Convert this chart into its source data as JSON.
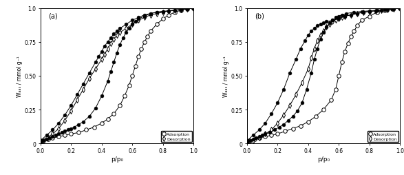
{
  "title_a": "(a)",
  "title_b": "(b)",
  "xlabel": "p/p₀",
  "ylabel": "Wₐₐₛ / mmol g⁻¹",
  "ylim": [
    0,
    1.0
  ],
  "xlim": [
    0,
    1.0
  ],
  "legend_ads": "Adsorption",
  "legend_des": "Desorption",
  "background_color": "#ffffff",
  "panel_a": {
    "ads_filled": {
      "x": [
        0.0,
        0.02,
        0.04,
        0.06,
        0.08,
        0.1,
        0.12,
        0.14,
        0.16,
        0.18,
        0.2,
        0.22,
        0.25,
        0.28,
        0.32,
        0.36,
        0.4,
        0.44,
        0.46,
        0.48,
        0.5,
        0.52,
        0.54,
        0.56,
        0.58,
        0.6,
        0.62,
        0.64,
        0.68,
        0.72,
        0.76,
        0.8,
        0.84,
        0.88,
        0.92,
        0.96,
        1.0
      ],
      "y": [
        0.01,
        0.02,
        0.03,
        0.04,
        0.05,
        0.06,
        0.07,
        0.08,
        0.09,
        0.1,
        0.11,
        0.12,
        0.14,
        0.16,
        0.2,
        0.26,
        0.35,
        0.46,
        0.53,
        0.6,
        0.67,
        0.73,
        0.78,
        0.82,
        0.85,
        0.88,
        0.9,
        0.92,
        0.94,
        0.96,
        0.97,
        0.975,
        0.98,
        0.985,
        0.99,
        0.995,
        1.0
      ]
    },
    "des_filled": {
      "x": [
        1.0,
        0.96,
        0.92,
        0.88,
        0.84,
        0.8,
        0.76,
        0.72,
        0.68,
        0.64,
        0.6,
        0.56,
        0.52,
        0.5,
        0.48,
        0.46,
        0.44,
        0.42,
        0.4,
        0.38,
        0.36,
        0.32,
        0.28,
        0.24,
        0.2,
        0.16,
        0.12,
        0.08,
        0.04,
        0.0
      ],
      "y": [
        1.0,
        0.995,
        0.99,
        0.985,
        0.98,
        0.975,
        0.97,
        0.96,
        0.95,
        0.93,
        0.91,
        0.88,
        0.85,
        0.83,
        0.81,
        0.78,
        0.75,
        0.72,
        0.68,
        0.64,
        0.6,
        0.52,
        0.44,
        0.36,
        0.28,
        0.21,
        0.15,
        0.1,
        0.06,
        0.02
      ]
    },
    "ads_open": {
      "x": [
        0.0,
        0.02,
        0.05,
        0.08,
        0.12,
        0.16,
        0.2,
        0.25,
        0.3,
        0.35,
        0.4,
        0.44,
        0.48,
        0.52,
        0.55,
        0.58,
        0.6,
        0.62,
        0.64,
        0.66,
        0.68,
        0.7,
        0.72,
        0.76,
        0.8,
        0.84,
        0.88,
        0.92,
        0.96,
        1.0
      ],
      "y": [
        0.01,
        0.02,
        0.03,
        0.04,
        0.05,
        0.06,
        0.07,
        0.08,
        0.1,
        0.12,
        0.15,
        0.18,
        0.22,
        0.28,
        0.35,
        0.43,
        0.5,
        0.57,
        0.64,
        0.7,
        0.75,
        0.79,
        0.83,
        0.88,
        0.92,
        0.95,
        0.97,
        0.985,
        0.995,
        1.0
      ]
    },
    "des_open": {
      "x": [
        1.0,
        0.96,
        0.92,
        0.88,
        0.84,
        0.8,
        0.76,
        0.72,
        0.68,
        0.64,
        0.6,
        0.56,
        0.52,
        0.5,
        0.48,
        0.46,
        0.44,
        0.42,
        0.4,
        0.36,
        0.32,
        0.28,
        0.24,
        0.2,
        0.16,
        0.12,
        0.08,
        0.04,
        0.0
      ],
      "y": [
        1.0,
        0.995,
        0.99,
        0.985,
        0.98,
        0.97,
        0.96,
        0.95,
        0.93,
        0.91,
        0.88,
        0.85,
        0.82,
        0.8,
        0.77,
        0.74,
        0.7,
        0.66,
        0.62,
        0.55,
        0.48,
        0.4,
        0.32,
        0.24,
        0.17,
        0.11,
        0.07,
        0.04,
        0.02
      ]
    }
  },
  "panel_b": {
    "ads_filled": {
      "x": [
        0.0,
        0.02,
        0.04,
        0.06,
        0.08,
        0.1,
        0.12,
        0.15,
        0.18,
        0.21,
        0.24,
        0.27,
        0.3,
        0.33,
        0.36,
        0.39,
        0.42,
        0.44,
        0.46,
        0.48,
        0.5,
        0.52,
        0.54,
        0.56,
        0.58,
        0.6,
        0.62,
        0.65,
        0.7,
        0.75,
        0.8,
        0.85,
        0.9,
        0.95,
        1.0
      ],
      "y": [
        0.01,
        0.02,
        0.03,
        0.04,
        0.05,
        0.06,
        0.07,
        0.08,
        0.1,
        0.12,
        0.14,
        0.17,
        0.2,
        0.24,
        0.3,
        0.4,
        0.52,
        0.62,
        0.7,
        0.77,
        0.82,
        0.86,
        0.89,
        0.91,
        0.93,
        0.94,
        0.95,
        0.96,
        0.97,
        0.975,
        0.98,
        0.985,
        0.99,
        0.995,
        1.0
      ]
    },
    "des_filled": {
      "x": [
        1.0,
        0.96,
        0.92,
        0.88,
        0.84,
        0.8,
        0.76,
        0.72,
        0.68,
        0.64,
        0.6,
        0.56,
        0.52,
        0.5,
        0.48,
        0.46,
        0.44,
        0.42,
        0.4,
        0.38,
        0.35,
        0.32,
        0.28,
        0.24,
        0.2,
        0.16,
        0.12,
        0.08,
        0.04,
        0.0
      ],
      "y": [
        1.0,
        0.995,
        0.99,
        0.985,
        0.98,
        0.975,
        0.97,
        0.96,
        0.95,
        0.94,
        0.92,
        0.91,
        0.9,
        0.89,
        0.88,
        0.87,
        0.85,
        0.83,
        0.8,
        0.76,
        0.7,
        0.62,
        0.52,
        0.4,
        0.3,
        0.22,
        0.15,
        0.1,
        0.06,
        0.02
      ]
    },
    "ads_open": {
      "x": [
        0.0,
        0.02,
        0.05,
        0.08,
        0.12,
        0.16,
        0.2,
        0.25,
        0.3,
        0.35,
        0.4,
        0.45,
        0.5,
        0.55,
        0.58,
        0.6,
        0.62,
        0.64,
        0.66,
        0.68,
        0.7,
        0.72,
        0.75,
        0.8,
        0.85,
        0.9,
        0.95,
        1.0
      ],
      "y": [
        0.01,
        0.02,
        0.03,
        0.04,
        0.05,
        0.06,
        0.07,
        0.09,
        0.11,
        0.13,
        0.16,
        0.2,
        0.25,
        0.32,
        0.4,
        0.5,
        0.6,
        0.68,
        0.74,
        0.79,
        0.83,
        0.87,
        0.91,
        0.94,
        0.97,
        0.985,
        0.993,
        1.0
      ]
    },
    "des_open": {
      "x": [
        1.0,
        0.96,
        0.92,
        0.88,
        0.84,
        0.8,
        0.76,
        0.72,
        0.68,
        0.64,
        0.62,
        0.6,
        0.58,
        0.56,
        0.54,
        0.52,
        0.5,
        0.48,
        0.46,
        0.44,
        0.42,
        0.4,
        0.36,
        0.32,
        0.28,
        0.24,
        0.2,
        0.16,
        0.12,
        0.08,
        0.04,
        0.0
      ],
      "y": [
        1.0,
        0.995,
        0.99,
        0.985,
        0.98,
        0.975,
        0.97,
        0.96,
        0.95,
        0.94,
        0.93,
        0.92,
        0.91,
        0.9,
        0.88,
        0.86,
        0.83,
        0.8,
        0.76,
        0.7,
        0.63,
        0.55,
        0.45,
        0.36,
        0.28,
        0.21,
        0.15,
        0.1,
        0.07,
        0.04,
        0.02,
        0.01
      ]
    }
  }
}
